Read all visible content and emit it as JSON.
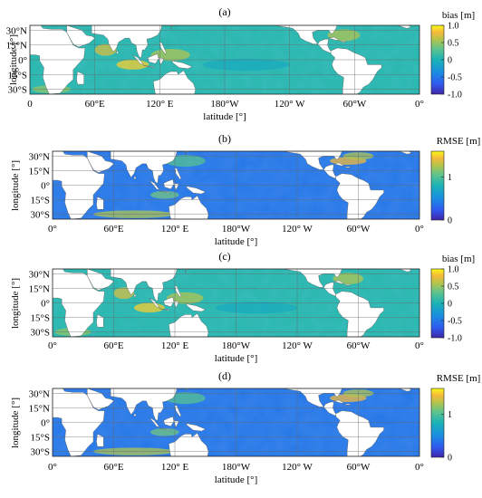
{
  "figure": {
    "lon_ticks_first": [
      {
        "lon": 0,
        "text": "0"
      },
      {
        "lon": 60,
        "text": "60°E"
      },
      {
        "lon": 120,
        "text": "120° E"
      },
      {
        "lon": 180,
        "text": "180°W"
      },
      {
        "lon": 240,
        "text": "120° W"
      },
      {
        "lon": 300,
        "text": "60°W"
      },
      {
        "lon": 360,
        "text": "0°"
      }
    ],
    "lon_ticks": [
      {
        "lon": 0,
        "text": "0°"
      },
      {
        "lon": 60,
        "text": "60°E"
      },
      {
        "lon": 120,
        "text": "120° E"
      },
      {
        "lon": 180,
        "text": "180°W"
      },
      {
        "lon": 240,
        "text": "120° W"
      },
      {
        "lon": 300,
        "text": "60°W"
      },
      {
        "lon": 360,
        "text": "0°"
      }
    ],
    "lat_ticks": [
      {
        "lat": 30,
        "text": "30°N"
      },
      {
        "lat": 15,
        "text": "15°N"
      },
      {
        "lat": 0,
        "text": "0°"
      },
      {
        "lat": -15,
        "text": "15°S"
      },
      {
        "lat": -30,
        "text": "30°S"
      }
    ],
    "xlabel": "latitude [°]",
    "ylabel": "longitude [°]",
    "lon_range": [
      0,
      360
    ],
    "lat_range": [
      -35,
      35
    ],
    "grid": true,
    "colormap": [
      "#3e26a8",
      "#2f5bf0",
      "#1a8ee0",
      "#1ab2b6",
      "#5fc48b",
      "#b8c44a",
      "#f6b93b",
      "#f9fb15"
    ],
    "land_color": "#ffffff"
  },
  "panels": [
    {
      "id": "a",
      "title": "(a)",
      "colorbar": {
        "title": "bias [m]",
        "min": -1.0,
        "max": 1.0,
        "ticks": [
          {
            "v": 1.0,
            "text": "1.0"
          },
          {
            "v": 0.5,
            "text": "0.5"
          },
          {
            "v": 0,
            "text": "0"
          },
          {
            "v": -0.5,
            "text": "-0.5"
          },
          {
            "v": -1.0,
            "text": "-1.0"
          }
        ]
      }
    },
    {
      "id": "b",
      "title": "(b)",
      "colorbar": {
        "title": "RMSE [m]",
        "min": 0,
        "max": 1.6,
        "ticks": [
          {
            "v": 1.0,
            "text": "1"
          },
          {
            "v": 0,
            "text": "0"
          }
        ]
      }
    },
    {
      "id": "c",
      "title": "(c)",
      "colorbar": {
        "title": "bias [m]",
        "min": -1.0,
        "max": 1.0,
        "ticks": [
          {
            "v": 1.0,
            "text": "1.0"
          },
          {
            "v": 0.5,
            "text": "0.5"
          },
          {
            "v": 0,
            "text": "0"
          },
          {
            "v": -0.5,
            "text": "-0.5"
          },
          {
            "v": -1.0,
            "text": "-1.0"
          }
        ]
      }
    },
    {
      "id": "d",
      "title": "(d)",
      "colorbar": {
        "title": "RMSE [m]",
        "min": 0,
        "max": 1.6,
        "ticks": [
          {
            "v": 1.0,
            "text": "1"
          },
          {
            "v": 0,
            "text": "0"
          }
        ]
      }
    }
  ]
}
